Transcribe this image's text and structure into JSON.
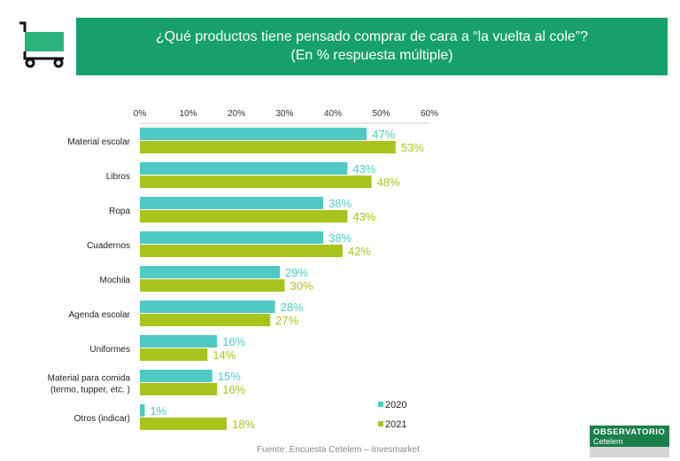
{
  "header": {
    "title": "¿Qué productos tiene pensado comprar de cara a “la vuelta al cole”?",
    "subtitle": "(En % respuesta múltiple)"
  },
  "chart_data": {
    "type": "bar",
    "orientation": "horizontal",
    "categories": [
      "Material escolar",
      "Libros",
      "Ropa",
      "Cuadernos",
      "Mochila",
      "Agenda escolar",
      "Uniformes",
      "Material para comida|(termo, tupper, etc. )",
      "Otros (indicar)"
    ],
    "series": [
      {
        "name": "2020",
        "color": "#4ec9c3",
        "values": [
          47,
          43,
          38,
          38,
          29,
          28,
          16,
          15,
          1
        ]
      },
      {
        "name": "2021",
        "color": "#a8c41c",
        "values": [
          53,
          48,
          43,
          42,
          30,
          27,
          14,
          16,
          18
        ]
      }
    ],
    "xlim": [
      0,
      60
    ],
    "xticks": [
      "0%",
      "10%",
      "20%",
      "30%",
      "40%",
      "50%",
      "60%"
    ],
    "tick_position": "top",
    "legend": "bottom-right",
    "grid": false,
    "value_suffix": "%"
  },
  "footer": {
    "source": "Fuente: Encuesta Cetelem –  Invesmarket",
    "logo_title": "OBSERVATORIO",
    "logo_sub": "Cetelem"
  }
}
